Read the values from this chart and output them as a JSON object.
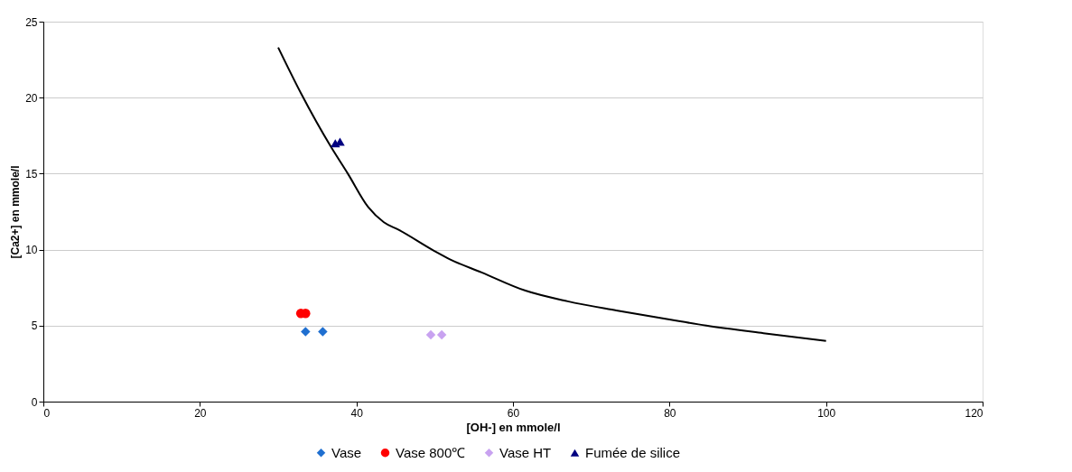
{
  "chart_data": {
    "type": "scatter",
    "xlabel": "[OH-] en mmole/l",
    "ylabel": "[Ca2+] en mmole/l",
    "xlim": [
      0,
      120
    ],
    "xticks": [
      0,
      20,
      40,
      60,
      80,
      100,
      120
    ],
    "ylim": [
      0,
      25
    ],
    "yticks": [
      0,
      5,
      10,
      15,
      20,
      25
    ],
    "grid": "y",
    "legend": "bottom",
    "series": [
      {
        "name": "Vase",
        "color": "#1f6fd0",
        "marker": "diamond",
        "x": [
          33.5,
          35.7
        ],
        "values": [
          4.6,
          4.6
        ]
      },
      {
        "name": "Vase 800℃",
        "color": "#ff0000",
        "marker": "circle",
        "x": [
          32.9,
          33.5
        ],
        "values": [
          5.8,
          5.8
        ]
      },
      {
        "name": "Vase HT",
        "color": "#c8a2f0",
        "marker": "diamond",
        "x": [
          49.5,
          50.9
        ],
        "values": [
          4.4,
          4.4
        ]
      },
      {
        "name": "Fumée de silice",
        "color": "#000080",
        "marker": "triangle",
        "x": [
          37.3,
          37.9
        ],
        "values": [
          17.0,
          17.1
        ]
      },
      {
        "type": "line",
        "color": "#000000",
        "marker": "none",
        "line_style": "solid",
        "x": [
          30,
          33,
          36.7,
          38.9,
          41.5,
          43.5,
          45.4,
          50,
          52,
          56,
          61.6,
          67,
          73.2,
          80,
          84.7,
          92,
          100
        ],
        "values": [
          23.3,
          20.2,
          16.8,
          15.0,
          12.8,
          11.8,
          11.3,
          9.9,
          9.35,
          8.5,
          7.3,
          6.6,
          6.0,
          5.4,
          5.0,
          4.5,
          4.0
        ]
      }
    ]
  }
}
